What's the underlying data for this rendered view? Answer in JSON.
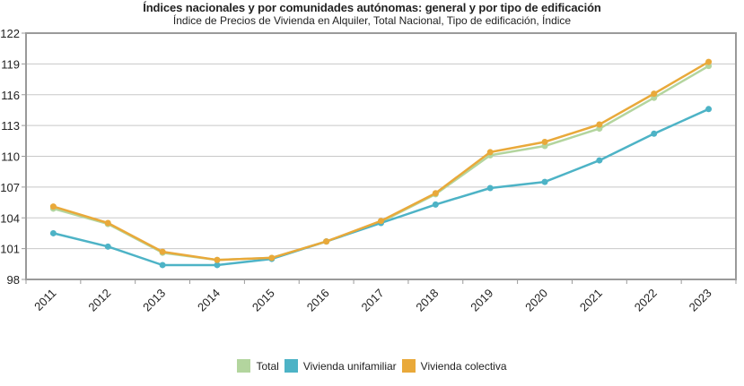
{
  "chart_data": {
    "type": "line",
    "title": "Índices nacionales y por comunidades autónomas: general y por tipo de edificación",
    "subtitle": "Índice de Precios de Vivienda en Alquiler, Total Nacional, Tipo de edificación, Índice",
    "xlabel": "",
    "ylabel": "",
    "categories": [
      "2011",
      "2012",
      "2013",
      "2014",
      "2015",
      "2016",
      "2017",
      "2018",
      "2019",
      "2020",
      "2021",
      "2022",
      "2023"
    ],
    "ylim": [
      98,
      122
    ],
    "yticks": [
      98,
      101,
      104,
      107,
      110,
      113,
      116,
      119,
      122
    ],
    "grid": true,
    "legend_position": "bottom",
    "series": [
      {
        "name": "Total",
        "color": "#b3d59e",
        "values": [
          104.9,
          103.4,
          100.6,
          99.9,
          100.1,
          101.7,
          103.6,
          106.3,
          110.1,
          111.0,
          112.7,
          115.7,
          118.8
        ]
      },
      {
        "name": "Vivienda unifamiliar",
        "color": "#4db3c6",
        "values": [
          102.5,
          101.2,
          99.4,
          99.4,
          100.0,
          101.7,
          103.5,
          105.3,
          106.9,
          107.5,
          109.6,
          112.2,
          114.6
        ]
      },
      {
        "name": "Vivienda colectiva",
        "color": "#e9a93a",
        "values": [
          105.1,
          103.5,
          100.7,
          99.9,
          100.1,
          101.7,
          103.7,
          106.4,
          110.4,
          111.4,
          113.1,
          116.1,
          119.2
        ]
      }
    ]
  }
}
